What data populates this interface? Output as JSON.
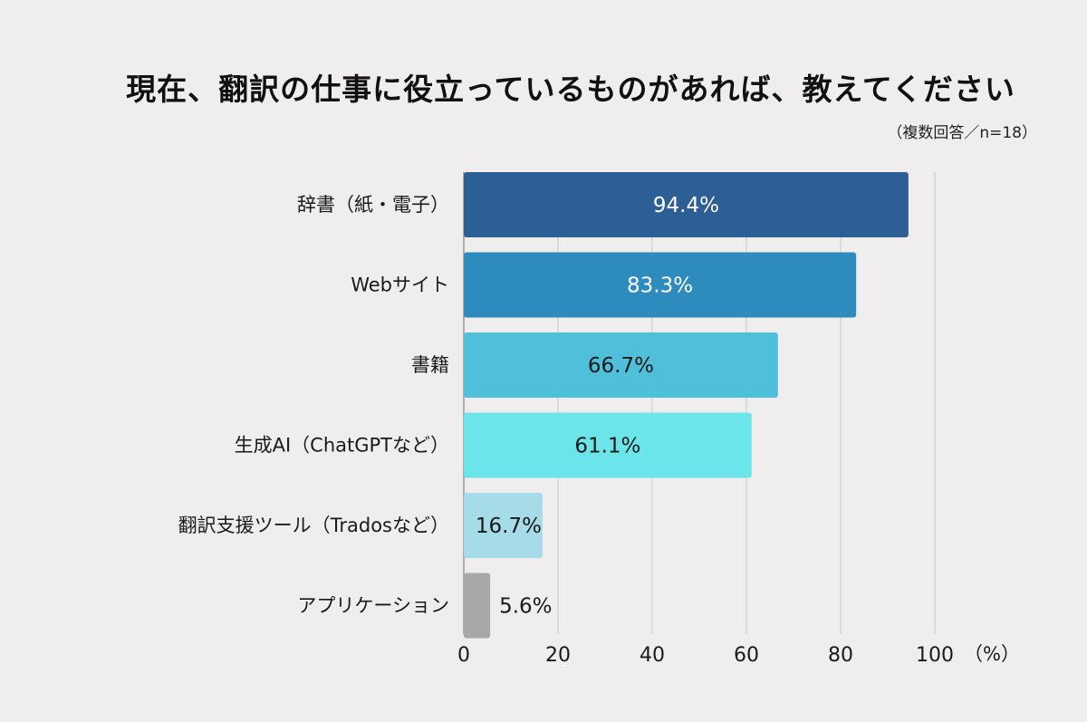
{
  "chart_data": {
    "type": "bar",
    "orientation": "horizontal",
    "title": "現在、翻訳の仕事に役立っているものがあれば、教えてください",
    "subtitle": "（複数回答／n=18）",
    "categories": [
      "辞書（紙・電子）",
      "Webサイト",
      "書籍",
      "生成AI（ChatGPTなど）",
      "翻訳支援ツール（Tradosなど）",
      "アプリケーション"
    ],
    "values": [
      94.4,
      83.3,
      66.7,
      61.1,
      16.7,
      5.6
    ],
    "value_labels": [
      "94.4%",
      "83.3%",
      "66.7%",
      "61.1%",
      "16.7%",
      "5.6%"
    ],
    "bar_colors": [
      "#2e5e96",
      "#2d8bbd",
      "#4fbfda",
      "#6ce5ea",
      "#a6dbe8",
      "#a8a8a8"
    ],
    "label_colors": [
      "#ffffff",
      "#ffffff",
      "#1a1a1a",
      "#1a1a1a",
      "#1a1a1a",
      "#1a1a1a"
    ],
    "xlim": [
      0,
      100
    ],
    "xticks": [
      0,
      20,
      40,
      60,
      80,
      100
    ],
    "x_unit": "（%）",
    "grid": true
  }
}
